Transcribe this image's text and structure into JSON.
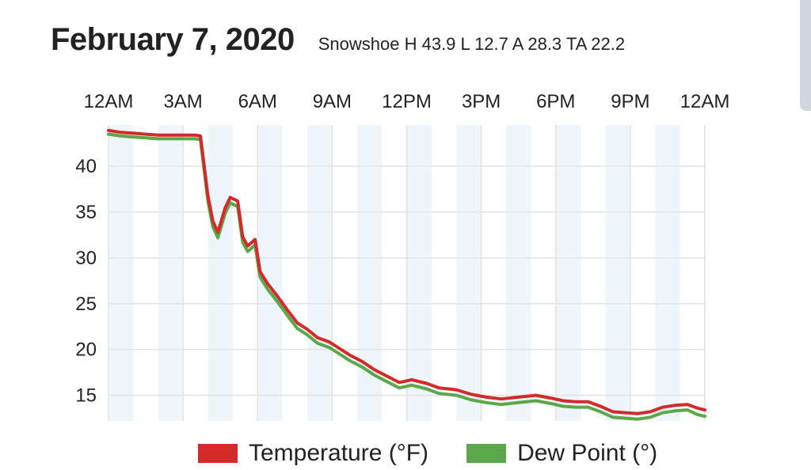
{
  "header": {
    "date": "February 7, 2020",
    "stats": "Snowshoe H 43.9 L 12.7 A 28.3 TA 22.2"
  },
  "colors": {
    "temperature": "#d42a2a",
    "dew_point": "#5aa84a",
    "band": "#eef5fb",
    "grid": "#e3e3e3"
  },
  "chart_data": {
    "type": "line",
    "title": "",
    "xlabel": "",
    "ylabel": "",
    "x_ticks": [
      "12AM",
      "3AM",
      "6AM",
      "9AM",
      "12PM",
      "3PM",
      "6PM",
      "9PM",
      "12AM"
    ],
    "x_range_hours": [
      0,
      24
    ],
    "y_ticks": [
      15,
      20,
      25,
      30,
      35,
      40
    ],
    "ylim": [
      12.2,
      44.5
    ],
    "grid": true,
    "legend_position": "bottom",
    "series": [
      {
        "name": "Temperature (°F)",
        "color": "#d42a2a",
        "x": [
          0,
          0.5,
          1,
          1.5,
          2,
          2.5,
          3,
          3.5,
          3.7,
          4.0,
          4.2,
          4.4,
          4.7,
          4.9,
          5.2,
          5.4,
          5.6,
          5.9,
          6.1,
          6.4,
          6.8,
          7.2,
          7.6,
          8.0,
          8.4,
          8.9,
          9.3,
          9.7,
          10.2,
          10.7,
          11.2,
          11.7,
          12.2,
          12.8,
          13.3,
          14.0,
          14.6,
          15.2,
          15.8,
          16.5,
          17.2,
          17.8,
          18.3,
          18.8,
          19.3,
          19.8,
          20.3,
          20.8,
          21.3,
          21.8,
          22.3,
          22.8,
          23.3,
          23.7,
          24
        ],
        "values": [
          43.9,
          43.7,
          43.6,
          43.5,
          43.4,
          43.4,
          43.4,
          43.4,
          43.3,
          36.8,
          34.0,
          32.8,
          35.5,
          36.6,
          36.2,
          32.3,
          31.3,
          32.0,
          28.5,
          27.2,
          25.8,
          24.3,
          22.9,
          22.2,
          21.3,
          20.8,
          20.1,
          19.4,
          18.7,
          17.8,
          17.1,
          16.4,
          16.7,
          16.3,
          15.8,
          15.6,
          15.1,
          14.8,
          14.6,
          14.8,
          15.0,
          14.7,
          14.4,
          14.3,
          14.3,
          13.8,
          13.2,
          13.1,
          13.0,
          13.2,
          13.7,
          13.9,
          14.0,
          13.6,
          13.4
        ]
      },
      {
        "name": "Dew Point (°)",
        "color": "#5aa84a",
        "x": [
          0,
          0.5,
          1,
          1.5,
          2,
          2.5,
          3,
          3.5,
          3.7,
          4.0,
          4.2,
          4.4,
          4.7,
          4.9,
          5.2,
          5.4,
          5.6,
          5.9,
          6.1,
          6.4,
          6.8,
          7.2,
          7.6,
          8.0,
          8.4,
          8.9,
          9.3,
          9.7,
          10.2,
          10.7,
          11.2,
          11.7,
          12.2,
          12.8,
          13.3,
          14.0,
          14.6,
          15.2,
          15.8,
          16.5,
          17.2,
          17.8,
          18.3,
          18.8,
          19.3,
          19.8,
          20.3,
          20.8,
          21.3,
          21.8,
          22.3,
          22.8,
          23.3,
          23.7,
          24
        ],
        "values": [
          43.5,
          43.3,
          43.2,
          43.1,
          43.0,
          43.0,
          43.0,
          43.0,
          42.9,
          36.2,
          33.4,
          32.2,
          34.9,
          36.0,
          35.6,
          31.7,
          30.7,
          31.4,
          27.9,
          26.6,
          25.2,
          23.7,
          22.3,
          21.6,
          20.7,
          20.2,
          19.5,
          18.8,
          18.1,
          17.2,
          16.5,
          15.8,
          16.1,
          15.7,
          15.2,
          15.0,
          14.5,
          14.2,
          14.0,
          14.2,
          14.4,
          14.1,
          13.8,
          13.7,
          13.7,
          13.2,
          12.6,
          12.5,
          12.4,
          12.6,
          13.1,
          13.3,
          13.4,
          12.9,
          12.7
        ]
      }
    ]
  }
}
